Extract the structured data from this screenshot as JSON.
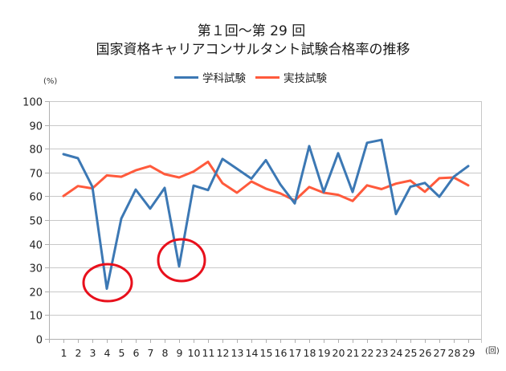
{
  "title": {
    "line1": "第１回〜第 29 回",
    "line2": "国家資格キャリアコンサルタント試験合格率の推移"
  },
  "legend": [
    {
      "label": "学科試験",
      "color": "#3c78b4"
    },
    {
      "label": "実技試験",
      "color": "#ff5a3c"
    }
  ],
  "axes": {
    "y_unit": "(%)",
    "x_unit": "(回)"
  },
  "annotations": [
    {
      "type": "ellipse",
      "color": "#e8101c",
      "target_category": 4,
      "series": "学科試験"
    },
    {
      "type": "ellipse",
      "color": "#e8101c",
      "target_category": 9,
      "series": "学科試験"
    }
  ],
  "chart_data": {
    "type": "line",
    "title": "第１回〜第 29 回 国家資格キャリアコンサルタント試験合格率の推移",
    "xlabel": "(回)",
    "ylabel": "(%)",
    "ylim": [
      0,
      100
    ],
    "yticks": [
      0,
      10,
      20,
      30,
      40,
      50,
      60,
      70,
      80,
      90,
      100
    ],
    "grid": true,
    "legend_position": "top",
    "categories": [
      "1",
      "2",
      "3",
      "4",
      "5",
      "6",
      "7",
      "8",
      "9",
      "10",
      "11",
      "12",
      "13",
      "14",
      "15",
      "16",
      "17",
      "18",
      "19",
      "20",
      "21",
      "22",
      "23",
      "24",
      "25",
      "26",
      "27",
      "28",
      "29"
    ],
    "series": [
      {
        "name": "学科試験",
        "color": "#3c78b4",
        "values": [
          77.7,
          76.0,
          64.0,
          21.1,
          50.6,
          62.8,
          54.8,
          63.5,
          30.5,
          64.5,
          62.6,
          75.7,
          71.6,
          67.4,
          75.2,
          65.0,
          57.0,
          81.1,
          61.8,
          78.1,
          61.8,
          82.5,
          83.7,
          52.5,
          64.0,
          65.6,
          59.8,
          68.2,
          72.7
        ]
      },
      {
        "name": "実技試験",
        "color": "#ff5a3c",
        "values": [
          60.1,
          64.3,
          63.3,
          68.8,
          68.2,
          70.9,
          72.7,
          69.3,
          67.9,
          70.4,
          74.5,
          65.5,
          61.5,
          66.2,
          63.2,
          61.2,
          58.2,
          63.9,
          61.5,
          60.6,
          58.0,
          64.6,
          63.0,
          65.3,
          66.6,
          61.9,
          67.6,
          67.9,
          64.6
        ]
      }
    ]
  }
}
